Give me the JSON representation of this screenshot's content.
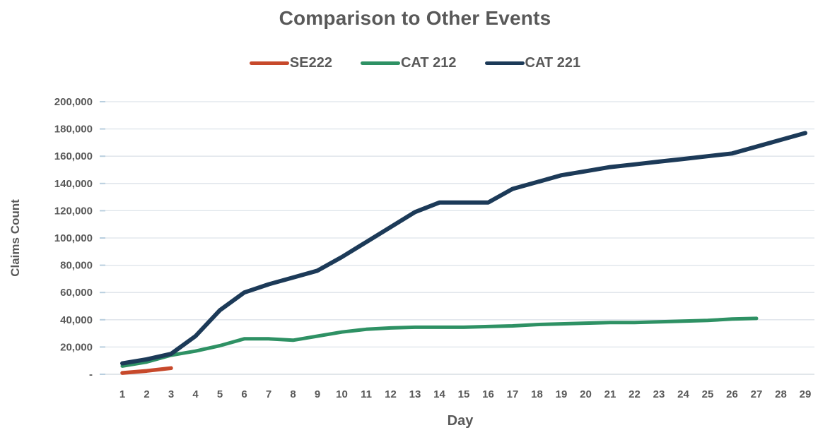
{
  "title": "Comparison to Other Events",
  "legend": [
    {
      "label": "SE222",
      "color": "#c7492b"
    },
    {
      "label": "CAT 212",
      "color": "#2e9164"
    },
    {
      "label": "CAT 221",
      "color": "#1c3a58"
    }
  ],
  "axes": {
    "x_title": "Day",
    "y_title": "Claims Count"
  },
  "colors": {
    "gridline": "#dde3e9",
    "axis_line": "#cfd8de",
    "tick_mark": "#b9cfdf",
    "text": "#595959"
  },
  "chart_data": {
    "type": "line",
    "title": "Comparison to Other Events",
    "xlabel": "Day",
    "ylabel": "Claims Count",
    "x": [
      1,
      2,
      3,
      4,
      5,
      6,
      7,
      8,
      9,
      10,
      11,
      12,
      13,
      14,
      15,
      16,
      17,
      18,
      19,
      20,
      21,
      22,
      23,
      24,
      25,
      26,
      27,
      28,
      29
    ],
    "ylim": [
      0,
      200000
    ],
    "ytick_interval": 20000,
    "ytick_labels": [
      "-",
      "20,000",
      "40,000",
      "60,000",
      "80,000",
      "100,000",
      "120,000",
      "140,000",
      "160,000",
      "180,000",
      "200,000"
    ],
    "grid": true,
    "legend_position": "top",
    "series": [
      {
        "name": "SE222",
        "color": "#c7492b",
        "values": [
          1000,
          2500,
          4500
        ]
      },
      {
        "name": "CAT 212",
        "color": "#2e9164",
        "values": [
          6000,
          9000,
          14000,
          17000,
          21000,
          26000,
          26000,
          25000,
          28000,
          31000,
          33000,
          34000,
          34500,
          34500,
          34500,
          35000,
          35500,
          36500,
          37000,
          37500,
          38000,
          38000,
          38500,
          39000,
          39500,
          40500,
          41000
        ]
      },
      {
        "name": "CAT 221",
        "color": "#1c3a58",
        "values": [
          8000,
          11000,
          15000,
          28000,
          47000,
          60000,
          66000,
          71000,
          76000,
          86000,
          97000,
          108000,
          119000,
          126000,
          126000,
          126000,
          136000,
          141000,
          146000,
          149000,
          152000,
          154000,
          156000,
          158000,
          160000,
          162000,
          167000,
          172000,
          177000
        ]
      }
    ]
  }
}
